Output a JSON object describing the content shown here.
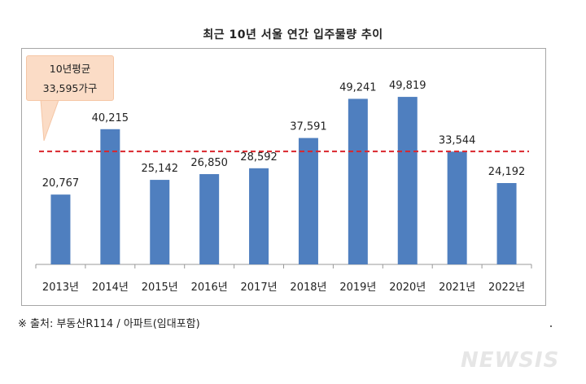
{
  "chart_data": {
    "type": "bar",
    "title": "최근 10년 서울 연간 입주물량 추이",
    "categories": [
      "2013년",
      "2014년",
      "2015년",
      "2016년",
      "2017년",
      "2018년",
      "2019년",
      "2020년",
      "2021년",
      "2022년"
    ],
    "values": [
      20767,
      40215,
      25142,
      26850,
      28592,
      37591,
      49241,
      49819,
      33544,
      24192
    ],
    "data_labels": [
      "20,767",
      "40,215",
      "25,142",
      "26,850",
      "28,592",
      "37,591",
      "49,241",
      "49,819",
      "33,544",
      "24,192"
    ],
    "ylim": [
      0,
      60000
    ],
    "grid": false,
    "average": {
      "value": 33595,
      "label_line1": "10년평균",
      "label_line2": "33,595가구",
      "color": "#d9262c"
    },
    "bar_color": "#4f7fbf"
  },
  "source": "※ 출처: 부동산R114 / 아파트(임대포함)",
  "watermark": "NEWSIS"
}
